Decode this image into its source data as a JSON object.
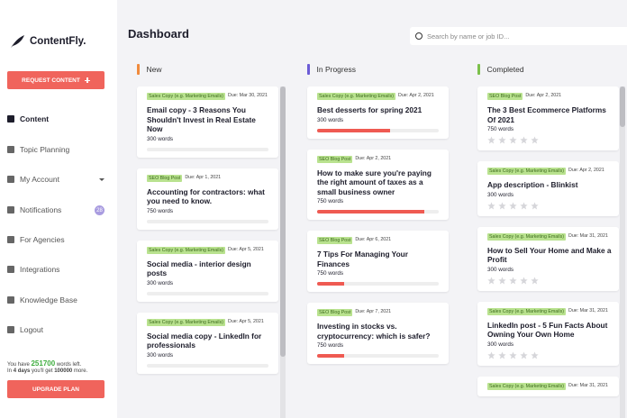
{
  "sidebar": {
    "brand": "ContentFly.",
    "request_button": "REQUEST CONTENT",
    "nav": [
      "Content",
      "Topic Planning",
      "My Account",
      "Notifications",
      "For Agencies",
      "Integrations",
      "Knowledge Base",
      "Logout"
    ],
    "notifications_badge": "28",
    "words_left": {
      "prefix": "You have",
      "amount": "251700",
      "suffix": "words left."
    },
    "renewal": {
      "prefix": "In",
      "days": "4 days",
      "middle": "you'll get",
      "amount": "100000",
      "suffix": "more."
    },
    "upgrade_button": "UPGRADE PLAN"
  },
  "header": {
    "title": "Dashboard",
    "search_placeholder": "Search by name or job ID..."
  },
  "columns": [
    {
      "title": "New",
      "cards": [
        {
          "tag": "Sales Copy (e.g. Marketing Emails)",
          "due": "Due: Mar 30, 2021",
          "title": "Email copy - 3 Reasons You Shouldn't Invest in Real Estate Now",
          "words": "300 words"
        },
        {
          "tag": "SEO Blog Post",
          "due": "Due: Apr 1, 2021",
          "title": "Accounting for contractors: what you need to know.",
          "words": "750 words"
        },
        {
          "tag": "Sales Copy (e.g. Marketing Emails)",
          "due": "Due: Apr 5, 2021",
          "title": "Social media - interior design posts",
          "words": "300 words"
        },
        {
          "tag": "Sales Copy (e.g. Marketing Emails)",
          "due": "Due: Apr 5, 2021",
          "title": "Social media copy - LinkedIn for professionals",
          "words": "300 words"
        }
      ]
    },
    {
      "title": "In Progress",
      "cards": [
        {
          "tag": "Sales Copy (e.g. Marketing Emails)",
          "due": "Due: Apr 2, 2021",
          "title": "Best desserts for spring 2021",
          "words": "300 words",
          "progress": 60
        },
        {
          "tag": "SEO Blog Post",
          "due": "Due: Apr 2, 2021",
          "title": "How to make sure you're paying the right amount of taxes as a small business owner",
          "words": "750 words",
          "progress": 88
        },
        {
          "tag": "SEO Blog Post",
          "due": "Due: Apr 6, 2021",
          "title": "7 Tips For Managing Your Finances",
          "words": "750 words",
          "progress": 22
        },
        {
          "tag": "SEO Blog Post",
          "due": "Due: Apr 7, 2021",
          "title": "Investing in stocks vs. cryptocurrency: which is safer?",
          "words": "750 words",
          "progress": 22
        }
      ]
    },
    {
      "title": "Completed",
      "cards": [
        {
          "tag": "SEO Blog Post",
          "due": "Due: Apr 2, 2021",
          "title": "The 3 Best Ecommerce Platforms Of 2021",
          "words": "750 words"
        },
        {
          "tag": "Sales Copy (e.g. Marketing Emails)",
          "due": "Due: Apr 2, 2021",
          "title": "App description - Blinkist",
          "words": "300 words"
        },
        {
          "tag": "Sales Copy (e.g. Marketing Emails)",
          "due": "Due: Mar 31, 2021",
          "title": "How to Sell Your Home and Make a Profit",
          "words": "300 words"
        },
        {
          "tag": "Sales Copy (e.g. Marketing Emails)",
          "due": "Due: Mar 31, 2021",
          "title": "LinkedIn post - 5 Fun Facts About Owning Your Own Home",
          "words": "300 words"
        },
        {
          "tag": "Sales Copy (e.g. Marketing Emails)",
          "due": "Due: Mar 31, 2021"
        }
      ]
    }
  ]
}
